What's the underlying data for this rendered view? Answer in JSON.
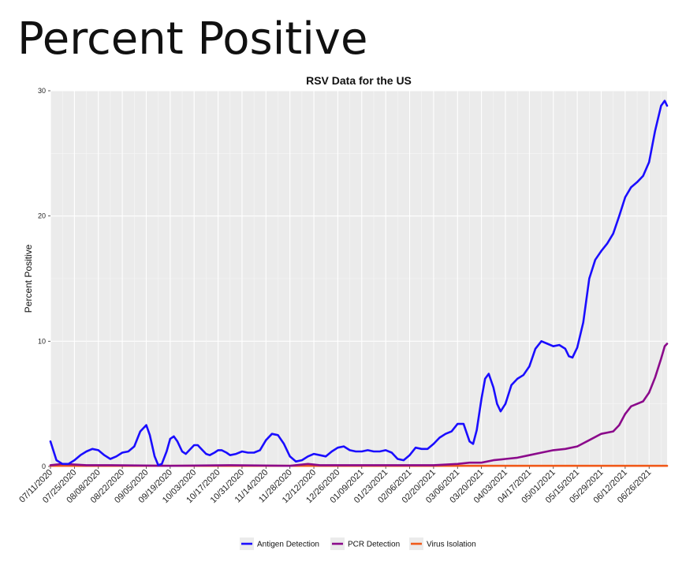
{
  "page": {
    "heading": "Percent Positive"
  },
  "chart_data": {
    "type": "line",
    "title": "RSV Data for the US",
    "xlabel": "",
    "ylabel": "Percent Positive",
    "ylim": [
      0,
      30
    ],
    "yticks": [
      0,
      10,
      20,
      30
    ],
    "grid": true,
    "legend_position": "bottom",
    "x_tick_labels": [
      "07/11/2020",
      "07/25/2020",
      "08/08/2020",
      "08/22/2020",
      "09/05/2020",
      "09/19/2020",
      "10/03/2020",
      "10/17/2020",
      "10/31/2020",
      "11/14/2020",
      "11/28/2020",
      "12/12/2020",
      "12/26/2020",
      "01/09/2021",
      "01/23/2021",
      "02/06/2021",
      "02/20/2021",
      "03/06/2021",
      "03/20/2021",
      "04/03/2021",
      "04/17/2021",
      "05/01/2021",
      "05/15/2021",
      "05/29/2021",
      "06/12/2021",
      "06/26/2021"
    ],
    "x_range": [
      0,
      51.5
    ],
    "series": [
      {
        "name": "Antigen Detection",
        "color": "#1a0dff",
        "points": [
          [
            0,
            2.0
          ],
          [
            0.5,
            0.5
          ],
          [
            1,
            0.2
          ],
          [
            1.5,
            0.2
          ],
          [
            2,
            0.5
          ],
          [
            2.5,
            0.9
          ],
          [
            3,
            1.2
          ],
          [
            3.5,
            1.4
          ],
          [
            4,
            1.3
          ],
          [
            4.5,
            0.9
          ],
          [
            5,
            0.6
          ],
          [
            5.5,
            0.8
          ],
          [
            6,
            1.1
          ],
          [
            6.5,
            1.2
          ],
          [
            7,
            1.6
          ],
          [
            7.5,
            2.8
          ],
          [
            8,
            3.3
          ],
          [
            8.3,
            2.5
          ],
          [
            8.7,
            0.8
          ],
          [
            9,
            0.1
          ],
          [
            9.3,
            0.2
          ],
          [
            9.7,
            1.2
          ],
          [
            10,
            2.2
          ],
          [
            10.3,
            2.4
          ],
          [
            10.6,
            2.0
          ],
          [
            11,
            1.2
          ],
          [
            11.3,
            1.0
          ],
          [
            11.6,
            1.3
          ],
          [
            12,
            1.7
          ],
          [
            12.3,
            1.7
          ],
          [
            12.7,
            1.3
          ],
          [
            13,
            1.0
          ],
          [
            13.3,
            0.9
          ],
          [
            13.7,
            1.1
          ],
          [
            14,
            1.3
          ],
          [
            14.3,
            1.3
          ],
          [
            14.7,
            1.1
          ],
          [
            15,
            0.9
          ],
          [
            15.5,
            1.0
          ],
          [
            16,
            1.2
          ],
          [
            16.5,
            1.1
          ],
          [
            17,
            1.1
          ],
          [
            17.5,
            1.3
          ],
          [
            18,
            2.1
          ],
          [
            18.5,
            2.6
          ],
          [
            19,
            2.5
          ],
          [
            19.5,
            1.8
          ],
          [
            20,
            0.8
          ],
          [
            20.5,
            0.4
          ],
          [
            21,
            0.5
          ],
          [
            21.5,
            0.8
          ],
          [
            22,
            1.0
          ],
          [
            22.5,
            0.9
          ],
          [
            23,
            0.8
          ],
          [
            23.5,
            1.2
          ],
          [
            24,
            1.5
          ],
          [
            24.5,
            1.6
          ],
          [
            25,
            1.3
          ],
          [
            25.5,
            1.2
          ],
          [
            26,
            1.2
          ],
          [
            26.5,
            1.3
          ],
          [
            27,
            1.2
          ],
          [
            27.5,
            1.2
          ],
          [
            28,
            1.3
          ],
          [
            28.5,
            1.1
          ],
          [
            29,
            0.6
          ],
          [
            29.5,
            0.5
          ],
          [
            30,
            0.9
          ],
          [
            30.5,
            1.5
          ],
          [
            31,
            1.4
          ],
          [
            31.5,
            1.4
          ],
          [
            32,
            1.8
          ],
          [
            32.5,
            2.3
          ],
          [
            33,
            2.6
          ],
          [
            33.5,
            2.8
          ],
          [
            34,
            3.4
          ],
          [
            34.5,
            3.4
          ],
          [
            35,
            2.0
          ],
          [
            35.3,
            1.8
          ],
          [
            35.6,
            2.9
          ],
          [
            36,
            5.4
          ],
          [
            36.3,
            7.0
          ],
          [
            36.6,
            7.4
          ],
          [
            37,
            6.3
          ],
          [
            37.3,
            5.0
          ],
          [
            37.6,
            4.4
          ],
          [
            38,
            5.0
          ],
          [
            38.5,
            6.5
          ],
          [
            39,
            7.0
          ],
          [
            39.5,
            7.3
          ],
          [
            40,
            8.0
          ],
          [
            40.5,
            9.4
          ],
          [
            41,
            10.0
          ],
          [
            41.5,
            9.8
          ],
          [
            42,
            9.6
          ],
          [
            42.5,
            9.7
          ],
          [
            43,
            9.4
          ],
          [
            43.3,
            8.8
          ],
          [
            43.6,
            8.7
          ],
          [
            44,
            9.5
          ],
          [
            44.5,
            11.5
          ],
          [
            45,
            15.0
          ],
          [
            45.5,
            16.5
          ],
          [
            46,
            17.2
          ],
          [
            46.5,
            17.8
          ],
          [
            47,
            18.6
          ],
          [
            47.5,
            20.0
          ],
          [
            48,
            21.5
          ],
          [
            48.5,
            22.3
          ],
          [
            49,
            22.7
          ],
          [
            49.5,
            23.2
          ],
          [
            50,
            24.3
          ],
          [
            50.5,
            26.8
          ],
          [
            51,
            28.8
          ],
          [
            51.3,
            29.2
          ],
          [
            51.5,
            28.8
          ]
        ]
      },
      {
        "name": "PCR Detection",
        "color": "#8b0a8b",
        "points": [
          [
            0,
            0.1
          ],
          [
            1,
            0.2
          ],
          [
            2,
            0.15
          ],
          [
            3,
            0.1
          ],
          [
            5,
            0.1
          ],
          [
            10,
            0.05
          ],
          [
            15,
            0.1
          ],
          [
            20,
            0.05
          ],
          [
            21.5,
            0.2
          ],
          [
            22.5,
            0.1
          ],
          [
            25,
            0.1
          ],
          [
            30,
            0.1
          ],
          [
            32,
            0.1
          ],
          [
            34,
            0.2
          ],
          [
            35,
            0.3
          ],
          [
            36,
            0.3
          ],
          [
            37,
            0.5
          ],
          [
            38,
            0.6
          ],
          [
            39,
            0.7
          ],
          [
            40,
            0.9
          ],
          [
            41,
            1.1
          ],
          [
            42,
            1.3
          ],
          [
            43,
            1.4
          ],
          [
            44,
            1.6
          ],
          [
            45,
            2.1
          ],
          [
            46,
            2.6
          ],
          [
            47,
            2.8
          ],
          [
            47.5,
            3.3
          ],
          [
            48,
            4.2
          ],
          [
            48.5,
            4.8
          ],
          [
            49,
            5.0
          ],
          [
            49.5,
            5.2
          ],
          [
            50,
            5.9
          ],
          [
            50.5,
            7.1
          ],
          [
            51,
            8.6
          ],
          [
            51.3,
            9.6
          ],
          [
            51.5,
            9.8
          ]
        ]
      },
      {
        "name": "Virus Isolation",
        "color": "#f05a1a",
        "points": [
          [
            0,
            0.05
          ],
          [
            51.5,
            0.05
          ]
        ]
      }
    ]
  }
}
